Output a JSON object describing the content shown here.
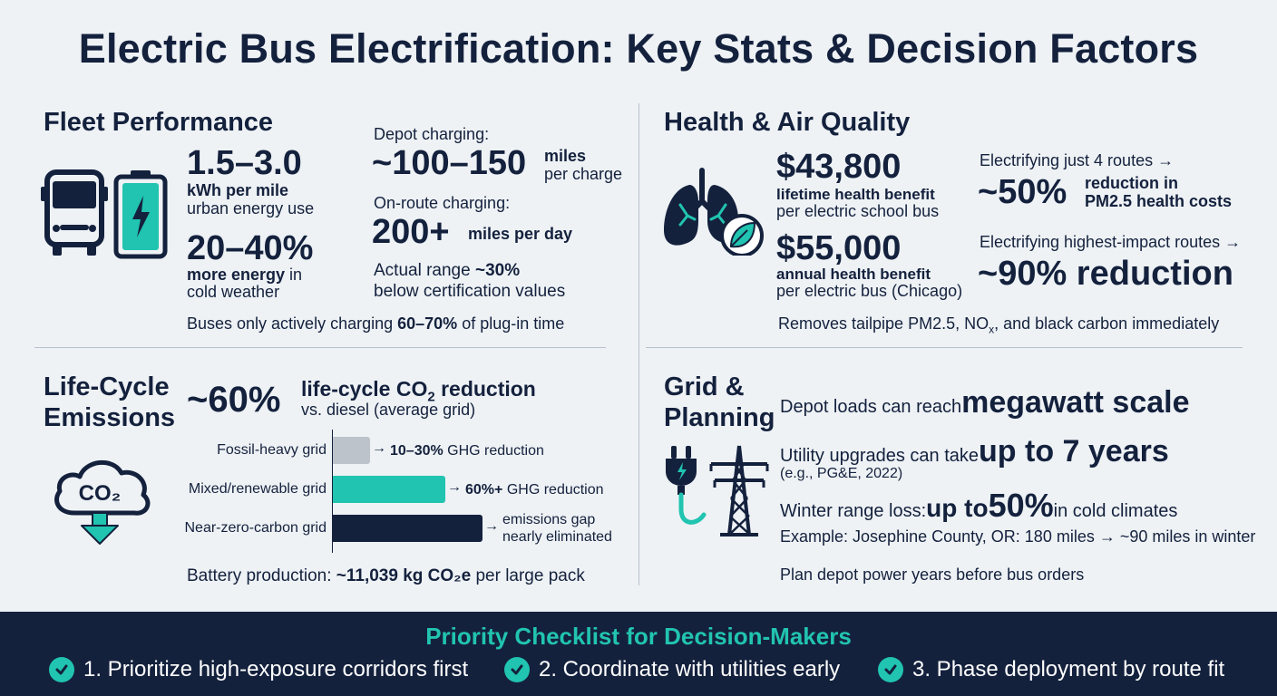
{
  "title": "Electric Bus Electrification: Key Stats & Decision Factors",
  "fleet": {
    "title": "Fleet Performance",
    "energy_value": "1.5–3.0",
    "energy_label": "kWh per mile",
    "energy_sub": "urban energy use",
    "cold_value": "20–40%",
    "cold_label": "more energy",
    "cold_label_suffix": " in",
    "cold_sub": "cold weather",
    "depot_label": "Depot charging:",
    "depot_value": "~100–150",
    "depot_unit1": "miles",
    "depot_unit2": "per charge",
    "onroute_label": "On-route charging:",
    "onroute_value": "200+",
    "onroute_unit": "miles per day",
    "range_pre": "Actual range ",
    "range_value": "~30%",
    "range_sub": "below certification values",
    "footer_pre": "Buses only actively charging ",
    "footer_bold": "60–70%",
    "footer_post": " of plug-in time"
  },
  "health": {
    "title": "Health & Air Quality",
    "benefit1_value": "$43,800",
    "benefit1_label": "lifetime health benefit",
    "benefit1_sub": "per electric school bus",
    "benefit2_value": "$55,000",
    "benefit2_label": "annual health benefit",
    "benefit2_sub": "per electric bus (Chicago)",
    "routes4_label": "Electrifying just 4 routes →",
    "routes4_value": "~50%",
    "routes4_unit1": "reduction in",
    "routes4_unit2": "PM2.5 health costs",
    "highimpact_label": "Electrifying highest-impact routes →",
    "highimpact_value": "~90% reduction",
    "footer_pre": "Removes tailpipe PM2.5, NO",
    "footer_sub": "x",
    "footer_post": ", and black carbon immediately"
  },
  "lifecycle": {
    "title_line1": "Life-Cycle",
    "title_line2": "Emissions",
    "headline_value": "~60%",
    "headline_label_pre": "life-cycle CO",
    "headline_label_sub": "2",
    "headline_label_post": " reduction",
    "headline_sub": "vs. diesel (average grid)",
    "icon_text": "CO",
    "icon_sub": "2",
    "footer_pre": "Battery production: ",
    "footer_bold": "~11,039 kg CO₂e",
    "footer_post": " per large pack"
  },
  "chart_data": {
    "type": "bar",
    "orientation": "horizontal",
    "categories": [
      "Fossil-heavy grid",
      "Mixed/renewable grid",
      "Near-zero-carbon grid"
    ],
    "notes": [
      {
        "bold": "10–30%",
        "text": " GHG reduction"
      },
      {
        "bold": "60%+",
        "text": " GHG reduction"
      },
      {
        "bold": "",
        "text": "emissions gap nearly eliminated"
      }
    ],
    "values": [
      0.25,
      0.75,
      1.0
    ],
    "colors": [
      "#bcc3ca",
      "#21c4b0",
      "#14213d"
    ]
  },
  "grid": {
    "title_line1": "Grid &",
    "title_line2": "Planning",
    "depot_pre": "Depot loads can reach ",
    "depot_value": "megawatt scale",
    "utility_pre": "Utility upgrades can take ",
    "utility_value": "up to 7 years",
    "utility_sub": "(e.g., PG&E, 2022)",
    "winter_pre": "Winter range loss: ",
    "winter_value_a": "up to ",
    "winter_value_b": "50%",
    "winter_post": " in cold climates",
    "example": "Example: Josephine County, OR: 180 miles → ~90 miles in winter",
    "plan": "Plan depot power years before bus orders"
  },
  "checklist": {
    "title": "Priority Checklist for Decision-Makers",
    "items": [
      "1. Prioritize high-exposure corridors first",
      "2. Coordinate with utilities early",
      "3. Phase deployment by route fit"
    ]
  },
  "colors": {
    "navy": "#14213d",
    "teal": "#21c4b0",
    "background": "#eef2f5",
    "gray_bar": "#bcc3ca"
  },
  "icons": [
    "bus-icon",
    "battery-icon",
    "lungs-icon",
    "leaf-icon",
    "co2-cloud-icon",
    "plug-icon",
    "transmission-tower-icon",
    "check-icon"
  ]
}
